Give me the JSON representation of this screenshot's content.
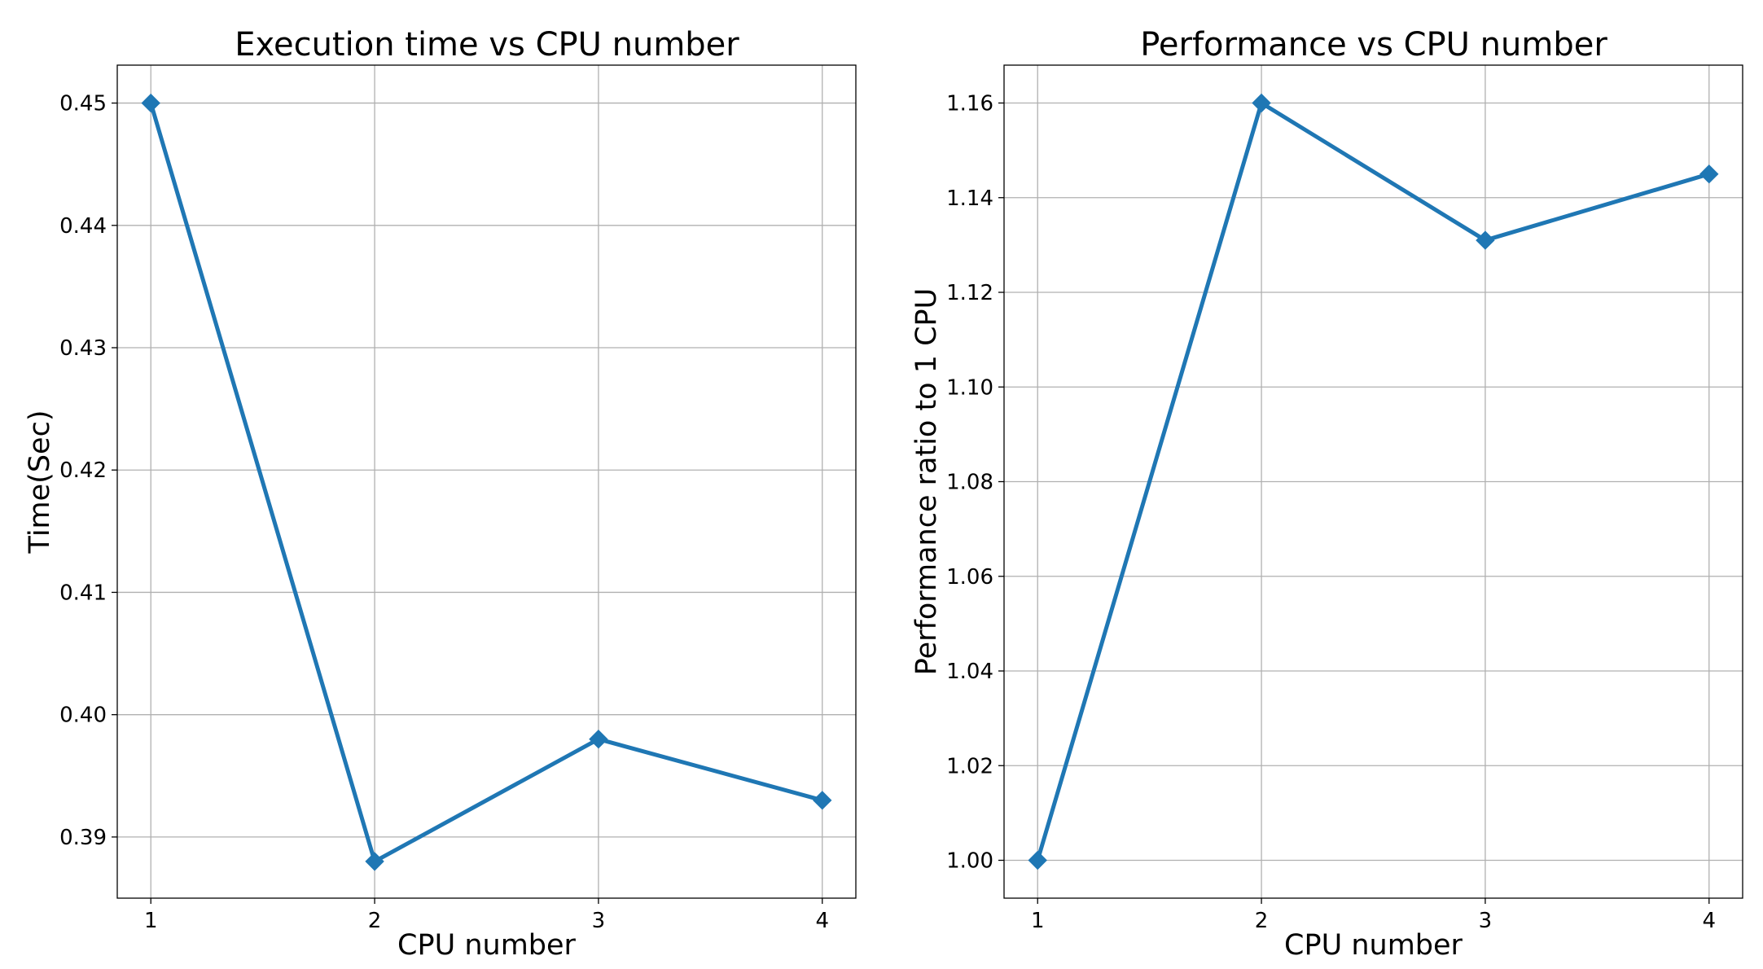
{
  "chart_data": [
    {
      "type": "line",
      "title": "Execution time vs CPU number",
      "xlabel": "CPU number",
      "ylabel": "Time(Sec)",
      "x": [
        1,
        2,
        3,
        4
      ],
      "x_ticks": [
        "1",
        "2",
        "3",
        "4"
      ],
      "xlim": [
        0.85,
        4.15
      ],
      "ylim": [
        0.385,
        0.4531
      ],
      "y_ticks": [
        "0.39",
        "0.40",
        "0.41",
        "0.42",
        "0.43",
        "0.44",
        "0.45"
      ],
      "series": [
        {
          "values": [
            0.45,
            0.388,
            0.398,
            0.393
          ],
          "color": "#1f77b4",
          "marker": "diamond"
        }
      ],
      "grid": true
    },
    {
      "type": "line",
      "title": "Performance vs CPU number",
      "xlabel": "CPU number",
      "ylabel": "Performance ratio to 1 CPU",
      "x": [
        1,
        2,
        3,
        4
      ],
      "x_ticks": [
        "1",
        "2",
        "3",
        "4"
      ],
      "xlim": [
        0.85,
        4.15
      ],
      "ylim": [
        0.992,
        1.168
      ],
      "y_ticks": [
        "1.00",
        "1.02",
        "1.04",
        "1.06",
        "1.08",
        "1.10",
        "1.12",
        "1.14",
        "1.16"
      ],
      "series": [
        {
          "values": [
            1.0,
            1.16,
            1.131,
            1.145
          ],
          "color": "#1f77b4",
          "marker": "diamond"
        }
      ],
      "grid": true
    }
  ]
}
